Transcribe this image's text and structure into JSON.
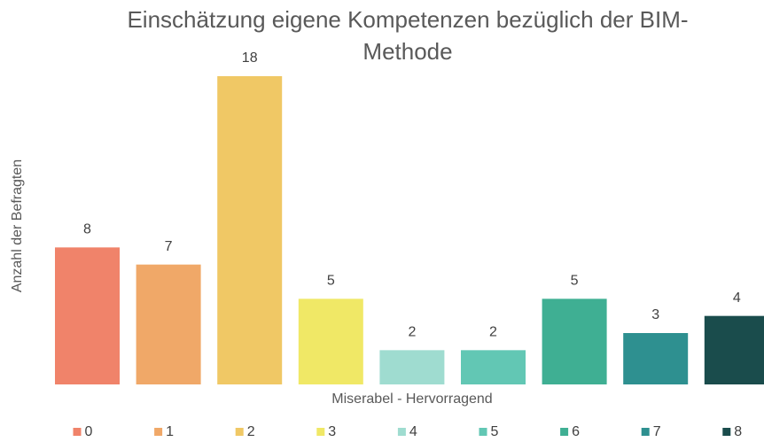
{
  "chart_data": {
    "type": "bar",
    "title": "Einschätzung eigene Kompetenzen bezüglich der BIM-Methode",
    "x_label": "Miserabel - Hervorragend",
    "y_label": "Anzahl der Befragten",
    "categories": [
      "0",
      "1",
      "2",
      "3",
      "4",
      "5",
      "6",
      "7",
      "8"
    ],
    "values": [
      8,
      7,
      18,
      5,
      2,
      2,
      5,
      3,
      4
    ],
    "colors": [
      "#f0836a",
      "#f0a868",
      "#f0c865",
      "#f0e866",
      "#9fdcd0",
      "#62c7b4",
      "#3faf93",
      "#2e9090",
      "#1a4c4c"
    ],
    "ylim": [
      0,
      18
    ]
  }
}
